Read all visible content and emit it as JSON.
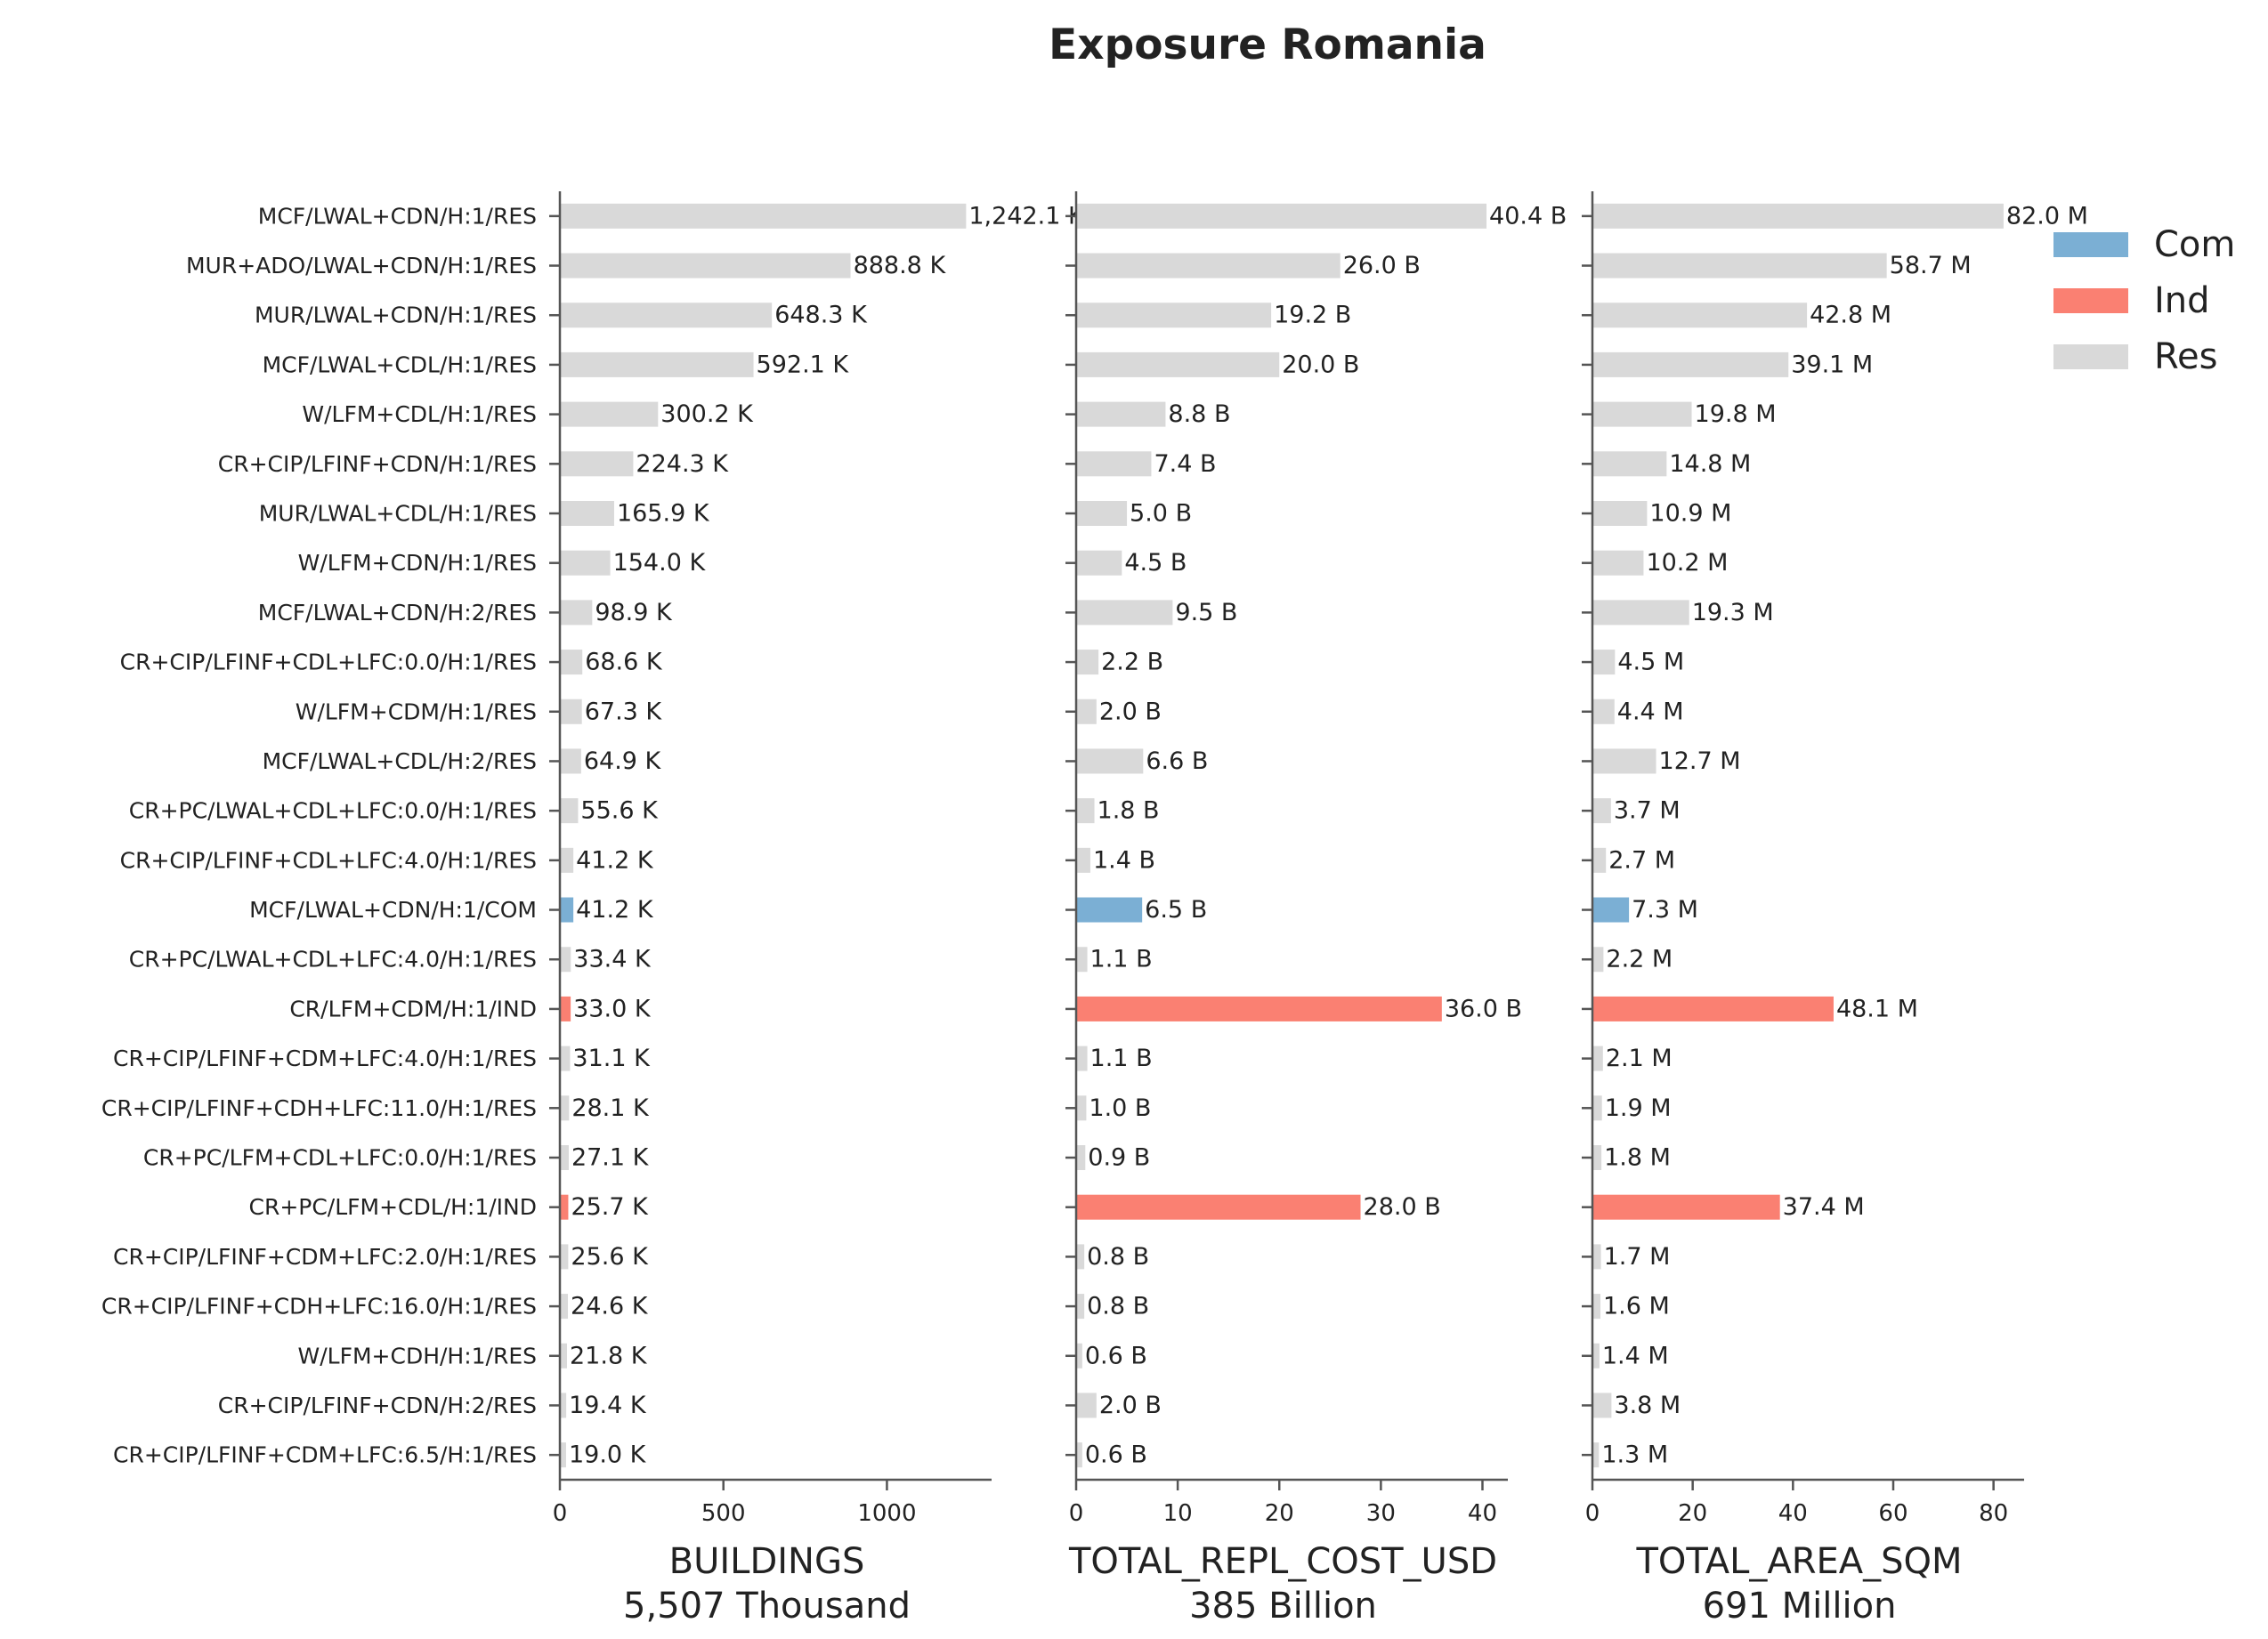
{
  "chart_data": {
    "type": "bar",
    "orientation": "horizontal",
    "title": "Exposure Romania",
    "colors": {
      "Com": "#7bafd4",
      "Ind": "#fa8072",
      "Res": "#d9d9d9"
    },
    "legend": {
      "position": "top-right",
      "entries": [
        "Com",
        "Ind",
        "Res"
      ]
    },
    "categories": [
      "MCF/LWAL+CDN/H:1/RES",
      "MUR+ADO/LWAL+CDN/H:1/RES",
      "MUR/LWAL+CDN/H:1/RES",
      "MCF/LWAL+CDL/H:1/RES",
      "W/LFM+CDL/H:1/RES",
      "CR+CIP/LFINF+CDN/H:1/RES",
      "MUR/LWAL+CDL/H:1/RES",
      "W/LFM+CDN/H:1/RES",
      "MCF/LWAL+CDN/H:2/RES",
      "CR+CIP/LFINF+CDL+LFC:0.0/H:1/RES",
      "W/LFM+CDM/H:1/RES",
      "MCF/LWAL+CDL/H:2/RES",
      "CR+PC/LWAL+CDL+LFC:0.0/H:1/RES",
      "CR+CIP/LFINF+CDL+LFC:4.0/H:1/RES",
      "MCF/LWAL+CDN/H:1/COM",
      "CR+PC/LWAL+CDL+LFC:4.0/H:1/RES",
      "CR/LFM+CDM/H:1/IND",
      "CR+CIP/LFINF+CDM+LFC:4.0/H:1/RES",
      "CR+CIP/LFINF+CDH+LFC:11.0/H:1/RES",
      "CR+PC/LFM+CDL+LFC:0.0/H:1/RES",
      "CR+PC/LFM+CDL/H:1/IND",
      "CR+CIP/LFINF+CDM+LFC:2.0/H:1/RES",
      "CR+CIP/LFINF+CDH+LFC:16.0/H:1/RES",
      "W/LFM+CDH/H:1/RES",
      "CR+CIP/LFINF+CDN/H:2/RES",
      "CR+CIP/LFINF+CDM+LFC:6.5/H:1/RES"
    ],
    "occupancy": [
      "Res",
      "Res",
      "Res",
      "Res",
      "Res",
      "Res",
      "Res",
      "Res",
      "Res",
      "Res",
      "Res",
      "Res",
      "Res",
      "Res",
      "Com",
      "Res",
      "Ind",
      "Res",
      "Res",
      "Res",
      "Ind",
      "Res",
      "Res",
      "Res",
      "Res",
      "Res"
    ],
    "panels": [
      {
        "name": "BUILDINGS",
        "total": "5,507 Thousand",
        "xticks": [
          "0",
          "500",
          "1000"
        ],
        "xlim": [
          0,
          1320
        ],
        "values": [
          1242.1,
          888.8,
          648.3,
          592.1,
          300.2,
          224.3,
          165.9,
          154.0,
          98.9,
          68.6,
          67.3,
          64.9,
          55.6,
          41.2,
          41.2,
          33.4,
          33.0,
          31.1,
          28.1,
          27.1,
          25.7,
          25.6,
          24.6,
          21.8,
          19.4,
          19.0
        ],
        "labels": [
          "1,242.1 K",
          "888.8 K",
          "648.3 K",
          "592.1 K",
          "300.2 K",
          "224.3 K",
          "165.9 K",
          "154.0 K",
          "98.9 K",
          "68.6 K",
          "67.3 K",
          "64.9 K",
          "55.6 K",
          "41.2 K",
          "41.2 K",
          "33.4 K",
          "33.0 K",
          "31.1 K",
          "28.1 K",
          "27.1 K",
          "25.7 K",
          "25.6 K",
          "24.6 K",
          "21.8 K",
          "19.4 K",
          "19.0 K"
        ]
      },
      {
        "name": "TOTAL_REPL_COST_USD",
        "total": "385 Billion",
        "xticks": [
          "0",
          "10",
          "20",
          "30",
          "40"
        ],
        "xlim": [
          0,
          42.5
        ],
        "values": [
          40.4,
          26.0,
          19.2,
          20.0,
          8.8,
          7.4,
          5.0,
          4.5,
          9.5,
          2.2,
          2.0,
          6.6,
          1.8,
          1.4,
          6.5,
          1.1,
          36.0,
          1.1,
          1.0,
          0.9,
          28.0,
          0.8,
          0.8,
          0.6,
          2.0,
          0.6
        ],
        "labels": [
          "40.4 B",
          "26.0 B",
          "19.2 B",
          "20.0 B",
          "8.8 B",
          "7.4 B",
          "5.0 B",
          "4.5 B",
          "9.5 B",
          "2.2 B",
          "2.0 B",
          "6.6 B",
          "1.8 B",
          "1.4 B",
          "6.5 B",
          "1.1 B",
          "36.0 B",
          "1.1 B",
          "1.0 B",
          "0.9 B",
          "28.0 B",
          "0.8 B",
          "0.8 B",
          "0.6 B",
          "2.0 B",
          "0.6 B"
        ]
      },
      {
        "name": "TOTAL_AREA_SQM",
        "total": "691 Million",
        "xticks": [
          "0",
          "20",
          "40",
          "60",
          "80"
        ],
        "xlim": [
          0,
          86.1
        ],
        "values": [
          82.0,
          58.7,
          42.8,
          39.1,
          19.8,
          14.8,
          10.9,
          10.2,
          19.3,
          4.5,
          4.4,
          12.7,
          3.7,
          2.7,
          7.3,
          2.2,
          48.1,
          2.1,
          1.9,
          1.8,
          37.4,
          1.7,
          1.6,
          1.4,
          3.8,
          1.3
        ],
        "labels": [
          "82.0 M",
          "58.7 M",
          "42.8 M",
          "39.1 M",
          "19.8 M",
          "14.8 M",
          "10.9 M",
          "10.2 M",
          "19.3 M",
          "4.5 M",
          "4.4 M",
          "12.7 M",
          "3.7 M",
          "2.7 M",
          "7.3 M",
          "2.2 M",
          "48.1 M",
          "2.1 M",
          "1.9 M",
          "1.8 M",
          "37.4 M",
          "1.7 M",
          "1.6 M",
          "1.4 M",
          "3.8 M",
          "1.3 M"
        ]
      }
    ]
  }
}
